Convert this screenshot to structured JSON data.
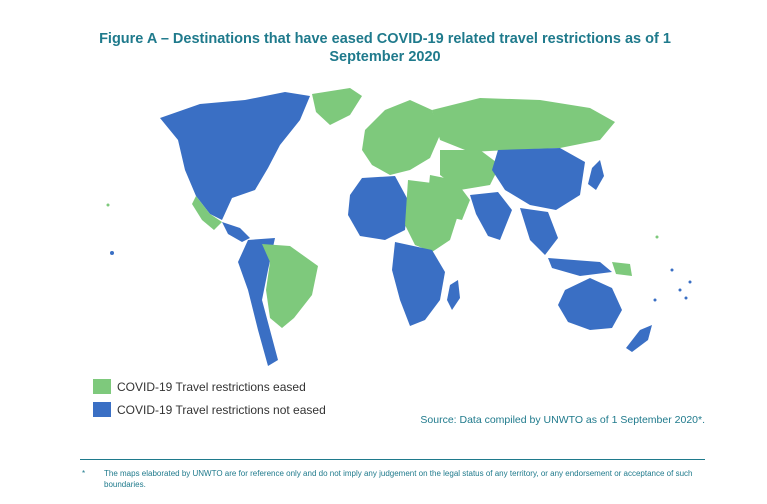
{
  "title": "Figure A – Destinations that have eased COVID-19 related travel restrictions as of 1 September 2020",
  "colors": {
    "eased": "#7ec97c",
    "not_eased": "#3a6fc4",
    "accent": "#1f7a8c"
  },
  "legend": {
    "eased": "COVID-19 Travel restrictions eased",
    "not_eased": "COVID-19 Travel restrictions not eased"
  },
  "source": "Source: Data compiled by UNWTO as of 1 September 2020*.",
  "footnote": {
    "mark": "*",
    "text": "The maps elaborated by UNWTO are for reference only and do not imply any judgement on the legal status of any territory, or any endorsement or acceptance of such boundaries."
  }
}
